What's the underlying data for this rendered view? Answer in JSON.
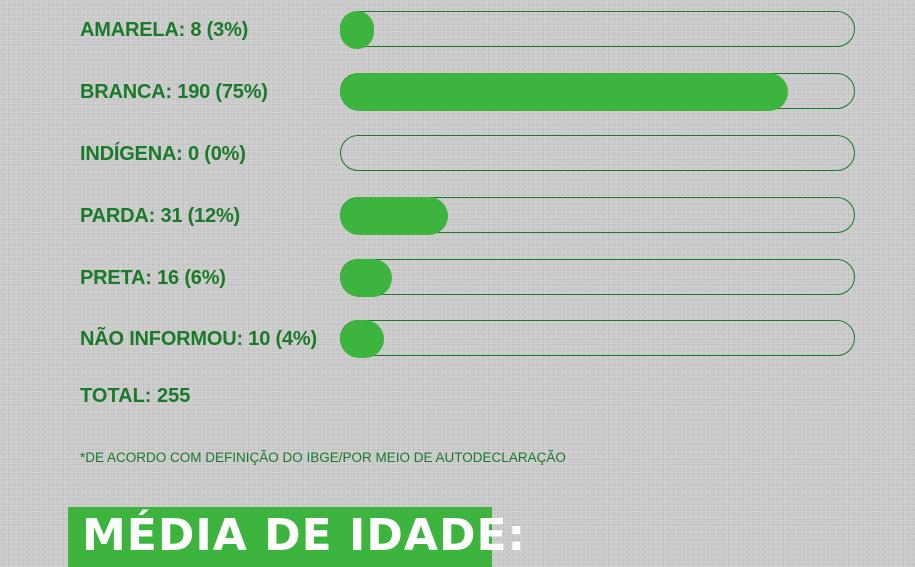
{
  "colors": {
    "label": "#1a7a2a",
    "bar_fill": "#3db43d",
    "track_border": "#1a7a2a",
    "background": "#c9c9c9",
    "heading_bg": "#3db43d",
    "heading_text": "#ffffff"
  },
  "chart_data": {
    "type": "bar",
    "orientation": "horizontal",
    "categories": [
      "AMARELA",
      "BRANCA",
      "INDÍGENA",
      "PARDA",
      "PRETA",
      "NÃO INFORMOU"
    ],
    "values": [
      8,
      190,
      0,
      31,
      16,
      10
    ],
    "percentages": [
      3,
      75,
      0,
      12,
      6,
      4
    ],
    "labels": [
      "AMARELA: 8 (3%)",
      "BRANCA: 190 (75%)",
      "INDÍGENA: 0 (0%)",
      "PARDA: 31 (12%)",
      "PRETA: 16 (6%)",
      "NÃO INFORMOU: 10 (4%)"
    ],
    "fill_fraction": [
      0.065,
      0.87,
      0.0,
      0.21,
      0.1,
      0.085
    ]
  },
  "total_label": "TOTAL: 255",
  "footnote": "*DE ACORDO COM DEFINIÇÃO DO IBGE/POR MEIO DE AUTODECLARAÇÃO",
  "next_section_heading": "MÉDIA DE IDADE:"
}
